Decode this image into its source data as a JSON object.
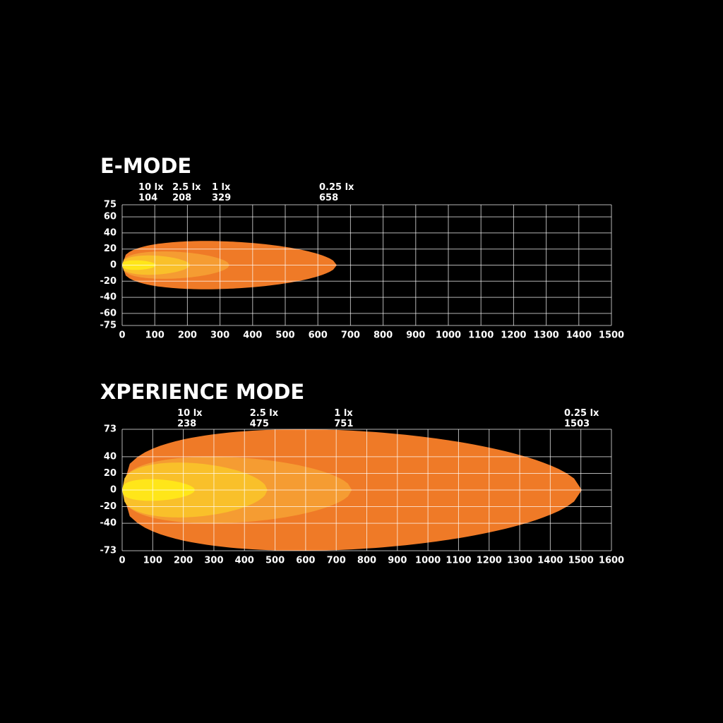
{
  "chart_data": [
    {
      "type": "beam",
      "title": "E-MODE",
      "xlim": [
        0,
        1500
      ],
      "xticks": [
        0,
        100,
        200,
        300,
        400,
        500,
        600,
        700,
        800,
        900,
        1000,
        1100,
        1200,
        1300,
        1400,
        1500
      ],
      "ylim": [
        -75,
        75
      ],
      "yticks": [
        -75,
        -60,
        -40,
        -20,
        0,
        20,
        40,
        60,
        75
      ],
      "grid": true,
      "series": [
        {
          "name": "10 lx",
          "color": "#ffe619",
          "reach": 104,
          "spread": 6
        },
        {
          "name": "2.5 lx",
          "color": "#f9c02a",
          "reach": 208,
          "spread": 12
        },
        {
          "name": "1 lx",
          "color": "#f59c32",
          "reach": 329,
          "spread": 17
        },
        {
          "name": "0.25 lx",
          "color": "#ef7a27",
          "reach": 658,
          "spread": 30
        }
      ]
    },
    {
      "type": "beam",
      "title": "XPERIENCE MODE",
      "xlim": [
        0,
        1600
      ],
      "xticks": [
        0,
        100,
        200,
        300,
        400,
        500,
        600,
        700,
        800,
        900,
        1000,
        1100,
        1200,
        1300,
        1400,
        1500,
        1600
      ],
      "ylim": [
        -73,
        73
      ],
      "yticks": [
        -73,
        -40,
        -20,
        0,
        20,
        40,
        73
      ],
      "grid": true,
      "series": [
        {
          "name": "10 lx",
          "color": "#ffe619",
          "reach": 238,
          "spread": 13
        },
        {
          "name": "2.5 lx",
          "color": "#f9c02a",
          "reach": 475,
          "spread": 33
        },
        {
          "name": "1 lx",
          "color": "#f59c32",
          "reach": 751,
          "spread": 40
        },
        {
          "name": "0.25 lx",
          "color": "#ef7a27",
          "reach": 1503,
          "spread": 73
        }
      ]
    }
  ]
}
